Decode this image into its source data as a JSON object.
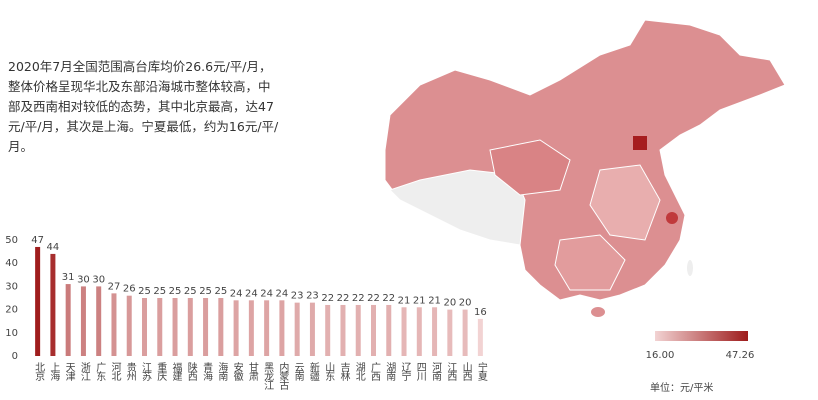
{
  "description": "2020年7月全国范围高台库均价26.6元/平/月，整体价格呈现华北及东部沿海城市整体较高，中部及西南相对较低的态势，其中北京最高，达47元/平/月，其次是上海。宁夏最低，约为16元/平/月。",
  "chart_data": {
    "type": "bar",
    "categories": [
      "北京",
      "上海",
      "天津",
      "浙江",
      "广东",
      "河北",
      "贵州",
      "江苏",
      "重庆",
      "福建",
      "陕西",
      "青海",
      "海南",
      "安徽",
      "甘肃",
      "黑龙江",
      "内蒙古",
      "云南",
      "新疆",
      "山东",
      "吉林",
      "湖北",
      "广西",
      "湖南",
      "辽宁",
      "四川",
      "河南",
      "江西",
      "山西",
      "宁夏"
    ],
    "values": [
      47,
      44,
      31,
      30,
      30,
      27,
      26,
      25,
      25,
      25,
      25,
      25,
      25,
      24,
      24,
      24,
      24,
      23,
      23,
      22,
      22,
      22,
      22,
      22,
      21,
      21,
      21,
      20,
      20,
      16
    ],
    "ylim": [
      0,
      50
    ],
    "yticks": [
      0,
      10,
      20,
      30,
      40,
      50
    ],
    "colorscale": {
      "min": {
        "value": 16,
        "label": "16.00"
      },
      "max": {
        "value": 47.26,
        "label": "47.26"
      },
      "colors": [
        "#f2d3d3",
        "#9e1b1b"
      ]
    },
    "unit": "单位：元/平米"
  }
}
